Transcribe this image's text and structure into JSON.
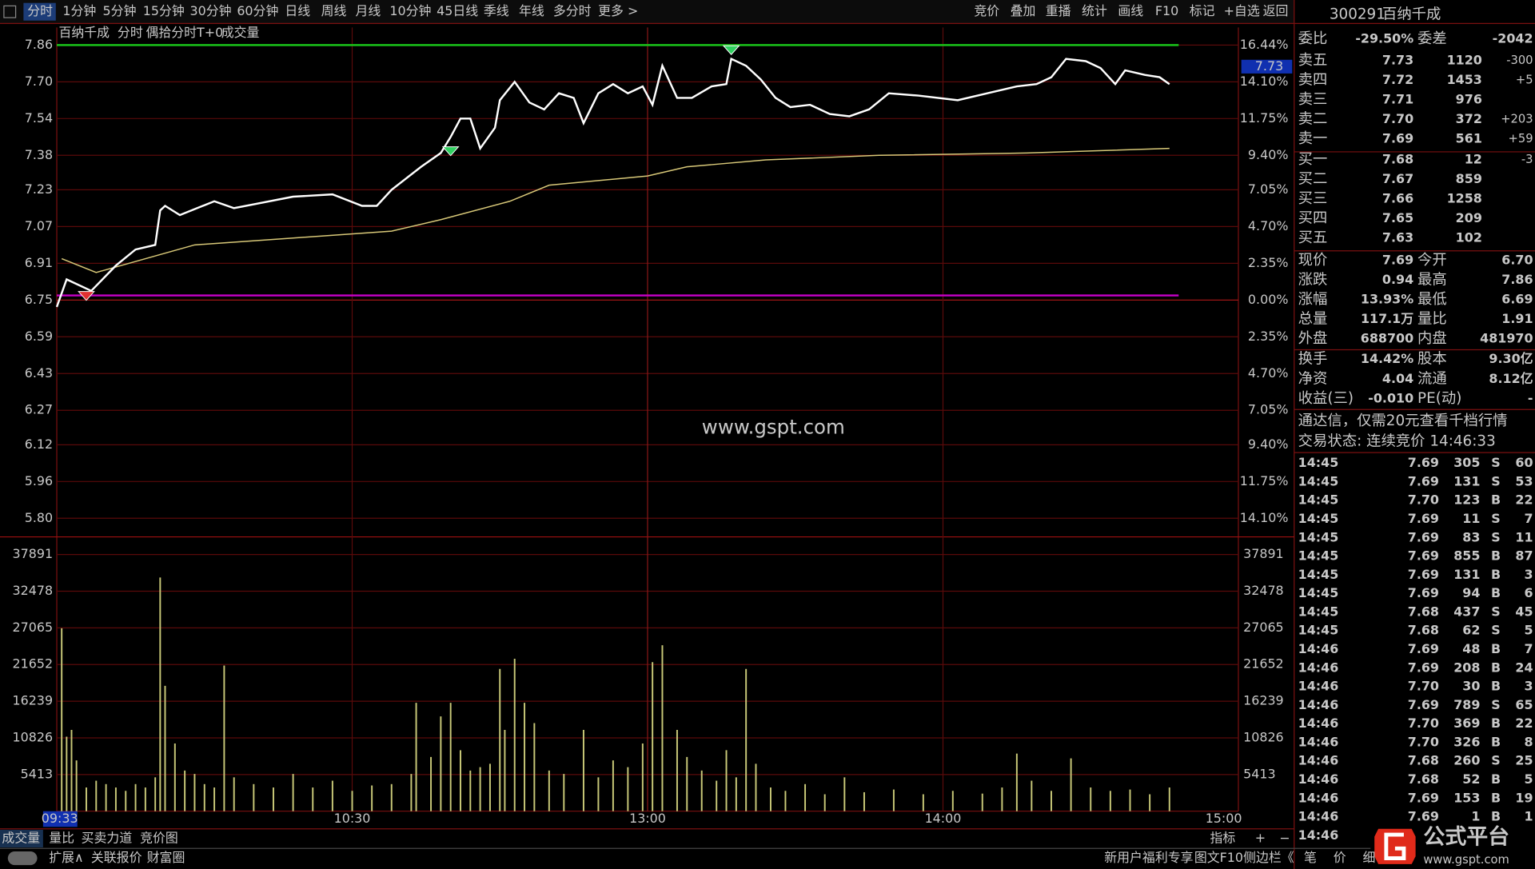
{
  "toolbar": {
    "left": [
      "分时",
      "1分钟",
      "5分钟",
      "15分钟",
      "30分钟",
      "60分钟",
      "日线",
      "周线",
      "月线",
      "10分钟",
      "45日线",
      "季线",
      "年线",
      "多分时",
      "更多 >"
    ],
    "right": [
      "竞价",
      "叠加",
      "重播",
      "统计",
      "画线",
      "F10",
      "标记",
      "+自选",
      "返回"
    ]
  },
  "chart_header": {
    "name": "百纳千成",
    "mode": "分时",
    "indicator": "偶拾分时T+0",
    "volume_label": "成交量"
  },
  "chart_data": {
    "type": "intraday",
    "ylim": [
      5.8,
      7.86
    ],
    "yticks": [
      7.86,
      {
        "value": 7.7,
        "label": "7.70"
      },
      7.54,
      7.38,
      7.23,
      7.07,
      6.91,
      6.75,
      6.59,
      6.43,
      6.27,
      6.12,
      5.96,
      {
        "value": 5.8,
        "label": "5.80"
      }
    ],
    "pct_labels": [
      "16.44%",
      "14.10%",
      "11.75%",
      "9.40%",
      "7.05%",
      "4.70%",
      "2.35%",
      "0.00%",
      "2.35%",
      "4.70%",
      "7.05%",
      "9.40%",
      "11.75%",
      "14.10%"
    ],
    "cursor_price": "7.73",
    "vlim": [
      0,
      37891
    ],
    "vticks": [
      37891,
      32478,
      27065,
      21652,
      16239,
      10826,
      5413
    ],
    "xticks": [
      "10:30",
      "13:00",
      "14:00",
      "15:00"
    ],
    "cursor_time": "09:33",
    "price": {
      "color": "#ffffff",
      "x": [
        "09:30",
        "09:32",
        "09:37",
        "09:42",
        "09:46",
        "09:50",
        "09:51",
        "09:52",
        "09:55",
        "10:02",
        "10:06",
        "10:18",
        "10:26",
        "10:32",
        "10:35",
        "10:38",
        "10:44",
        "10:48",
        "10:50",
        "10:52",
        "10:54",
        "10:56",
        "10:59",
        "11:00",
        "11:03",
        "11:06",
        "11:09",
        "11:12",
        "11:15",
        "11:17",
        "11:20",
        "11:23",
        "11:26",
        "11:29",
        "13:01",
        "13:03",
        "13:06",
        "13:09",
        "13:13",
        "13:16",
        "13:17",
        "13:20",
        "13:23",
        "13:26",
        "13:29",
        "13:33",
        "13:37",
        "13:41",
        "13:45",
        "13:49",
        "13:55",
        "14:03",
        "14:09",
        "14:15",
        "14:19",
        "14:22",
        "14:25",
        "14:29",
        "14:32",
        "14:35",
        "14:37",
        "14:41",
        "14:44",
        "14:46"
      ],
      "values": [
        6.72,
        6.84,
        6.79,
        6.9,
        6.97,
        6.99,
        7.14,
        7.16,
        7.12,
        7.18,
        7.15,
        7.2,
        7.21,
        7.16,
        7.16,
        7.23,
        7.33,
        7.39,
        7.46,
        7.54,
        7.54,
        7.41,
        7.5,
        7.62,
        7.7,
        7.61,
        7.58,
        7.65,
        7.63,
        7.52,
        7.65,
        7.69,
        7.65,
        7.68,
        7.6,
        7.77,
        7.63,
        7.63,
        7.68,
        7.69,
        7.8,
        7.77,
        7.71,
        7.63,
        7.59,
        7.6,
        7.56,
        7.55,
        7.58,
        7.65,
        7.64,
        7.62,
        7.65,
        7.68,
        7.69,
        7.72,
        7.8,
        7.79,
        7.76,
        7.69,
        7.75,
        7.73,
        7.72,
        7.69
      ]
    },
    "average": {
      "color": "#d8c878",
      "x": [
        "09:31",
        "09:38",
        "09:58",
        "10:18",
        "10:38",
        "10:48",
        "11:02",
        "11:10",
        "11:30",
        "13:08",
        "13:24",
        "13:47",
        "14:17",
        "14:46"
      ],
      "values": [
        6.93,
        6.87,
        6.99,
        7.02,
        7.05,
        7.1,
        7.18,
        7.25,
        7.29,
        7.33,
        7.36,
        7.38,
        7.39,
        7.41
      ]
    },
    "volume": {
      "color": "#c8c878",
      "x": [
        "09:31",
        "09:32",
        "09:33",
        "09:34",
        "09:36",
        "09:38",
        "09:40",
        "09:42",
        "09:44",
        "09:46",
        "09:48",
        "09:50",
        "09:51",
        "09:52",
        "09:54",
        "09:56",
        "09:58",
        "10:00",
        "10:02",
        "10:04",
        "10:06",
        "10:10",
        "10:14",
        "10:18",
        "10:22",
        "10:26",
        "10:30",
        "10:34",
        "10:38",
        "10:42",
        "10:43",
        "10:46",
        "10:48",
        "10:50",
        "10:52",
        "10:54",
        "10:56",
        "10:58",
        "11:00",
        "11:01",
        "11:03",
        "11:05",
        "11:07",
        "11:10",
        "11:13",
        "11:17",
        "11:20",
        "11:23",
        "11:26",
        "11:29",
        "13:01",
        "13:03",
        "13:06",
        "13:08",
        "13:11",
        "13:14",
        "13:16",
        "13:18",
        "13:20",
        "13:22",
        "13:25",
        "13:28",
        "13:32",
        "13:36",
        "13:40",
        "13:44",
        "13:50",
        "13:56",
        "14:02",
        "14:08",
        "14:12",
        "14:15",
        "14:18",
        "14:22",
        "14:26",
        "14:30",
        "14:34",
        "14:38",
        "14:42",
        "14:46"
      ],
      "values": [
        27000,
        11000,
        12000,
        7500,
        3500,
        4500,
        4000,
        3500,
        3000,
        4000,
        3500,
        5000,
        34500,
        18500,
        10000,
        6000,
        5500,
        4000,
        3500,
        21500,
        5000,
        4000,
        3500,
        5500,
        3500,
        4500,
        3000,
        3800,
        4000,
        5500,
        16000,
        8000,
        14000,
        16000,
        9000,
        6000,
        6500,
        7000,
        21000,
        12000,
        22500,
        16000,
        13000,
        6000,
        5500,
        12000,
        5000,
        7500,
        6500,
        10000,
        22000,
        24500,
        12000,
        8000,
        6000,
        4500,
        9000,
        5000,
        21000,
        7000,
        3500,
        3000,
        4000,
        2500,
        5000,
        2800,
        3200,
        2500,
        3000,
        2600,
        3500,
        8500,
        4500,
        3000,
        7800,
        3500,
        3000,
        3200,
        2500,
        3500
      ]
    },
    "levels": [
      {
        "value": 7.86,
        "color": "#19c619"
      },
      {
        "value": 6.77,
        "color": "#c800c8"
      }
    ],
    "signals": [
      {
        "time": "09:36",
        "price": 6.77,
        "color": "#e03030"
      },
      {
        "time": "10:50",
        "price": 7.4,
        "color": "#30d060"
      },
      {
        "time": "13:17",
        "price": 7.84,
        "color": "#30d060"
      }
    ]
  },
  "watermark": "www.gspt.com",
  "side": {
    "header": {
      "code": "300291",
      "name": "百纳千成"
    },
    "ratio": {
      "label": "委比",
      "value": "-29.50%",
      "diff_label": "委差",
      "diff": "-2042"
    },
    "asks": [
      [
        "卖五",
        "7.73",
        "1120",
        "-300"
      ],
      [
        "卖四",
        "7.72",
        "1453",
        "+5"
      ],
      [
        "卖三",
        "7.71",
        "976"
      ],
      [
        "卖二",
        "7.70",
        "372",
        "+203"
      ],
      [
        "卖一",
        "7.69",
        "561",
        "+59"
      ]
    ],
    "bids": [
      [
        "买一",
        "7.68",
        "12",
        "-3"
      ],
      [
        "买二",
        "7.67",
        "859"
      ],
      [
        "买三",
        "7.66",
        "1258"
      ],
      [
        "买四",
        "7.65",
        "209"
      ],
      [
        "买五",
        "7.63",
        "102"
      ]
    ],
    "quote": [
      [
        "现价",
        "7.69",
        "今开",
        "6.70"
      ],
      [
        "涨跌",
        "0.94",
        "最高",
        "7.86"
      ],
      [
        "涨幅",
        "13.93%",
        "最低",
        "6.69"
      ],
      [
        "总量",
        "117.1万",
        "量比",
        "1.91"
      ],
      [
        "外盘",
        "688700",
        "内盘",
        "481970"
      ]
    ],
    "fundamentals": [
      [
        "换手",
        "14.42%",
        "股本",
        "9.30亿"
      ],
      [
        "净资",
        "4.04",
        "流通",
        "8.12亿"
      ],
      [
        "收益(三)",
        "-0.010",
        "PE(动)",
        "-"
      ]
    ],
    "ad": "通达信，仅需20元查看千档行情",
    "status": "交易状态: 连续竞价 14:46:33",
    "trades": [
      [
        "14:45",
        "7.69",
        "305",
        "S",
        "60"
      ],
      [
        "14:45",
        "7.69",
        "131",
        "S",
        "53"
      ],
      [
        "14:45",
        "7.70",
        "123",
        "B",
        "22"
      ],
      [
        "14:45",
        "7.69",
        "11",
        "S",
        "7"
      ],
      [
        "14:45",
        "7.69",
        "83",
        "S",
        "11"
      ],
      [
        "14:45",
        "7.69",
        "855",
        "B",
        "87"
      ],
      [
        "14:45",
        "7.69",
        "131",
        "B",
        "3"
      ],
      [
        "14:45",
        "7.69",
        "94",
        "B",
        "6"
      ],
      [
        "14:45",
        "7.68",
        "437",
        "S",
        "45"
      ],
      [
        "14:45",
        "7.68",
        "62",
        "S",
        "5"
      ],
      [
        "14:46",
        "7.69",
        "48",
        "B",
        "7"
      ],
      [
        "14:46",
        "7.69",
        "208",
        "B",
        "24"
      ],
      [
        "14:46",
        "7.70",
        "30",
        "B",
        "3"
      ],
      [
        "14:46",
        "7.69",
        "789",
        "S",
        "65"
      ],
      [
        "14:46",
        "7.70",
        "369",
        "B",
        "22"
      ],
      [
        "14:46",
        "7.70",
        "326",
        "B",
        "8"
      ],
      [
        "14:46",
        "7.68",
        "260",
        "S",
        "25"
      ],
      [
        "14:46",
        "7.68",
        "52",
        "B",
        "5"
      ],
      [
        "14:46",
        "7.69",
        "153",
        "B",
        "19"
      ],
      [
        "14:46",
        "7.69",
        "1",
        "B",
        "1"
      ],
      [
        "14:46"
      ]
    ]
  },
  "bottom": {
    "tabs": [
      "成交量",
      "量比",
      "买卖力道",
      "竞价图"
    ],
    "tools": [
      "指标",
      "+",
      "−"
    ],
    "bar_left": [
      "扩展∧",
      "关联报价",
      "财富圈"
    ],
    "bar_right": [
      "新用户福利专享",
      "图文F10",
      "侧边栏《"
    ],
    "side_tabs": [
      "笔",
      "价",
      "细"
    ]
  },
  "logo": {
    "name": "公式平台",
    "url": "www.gspt.com"
  }
}
